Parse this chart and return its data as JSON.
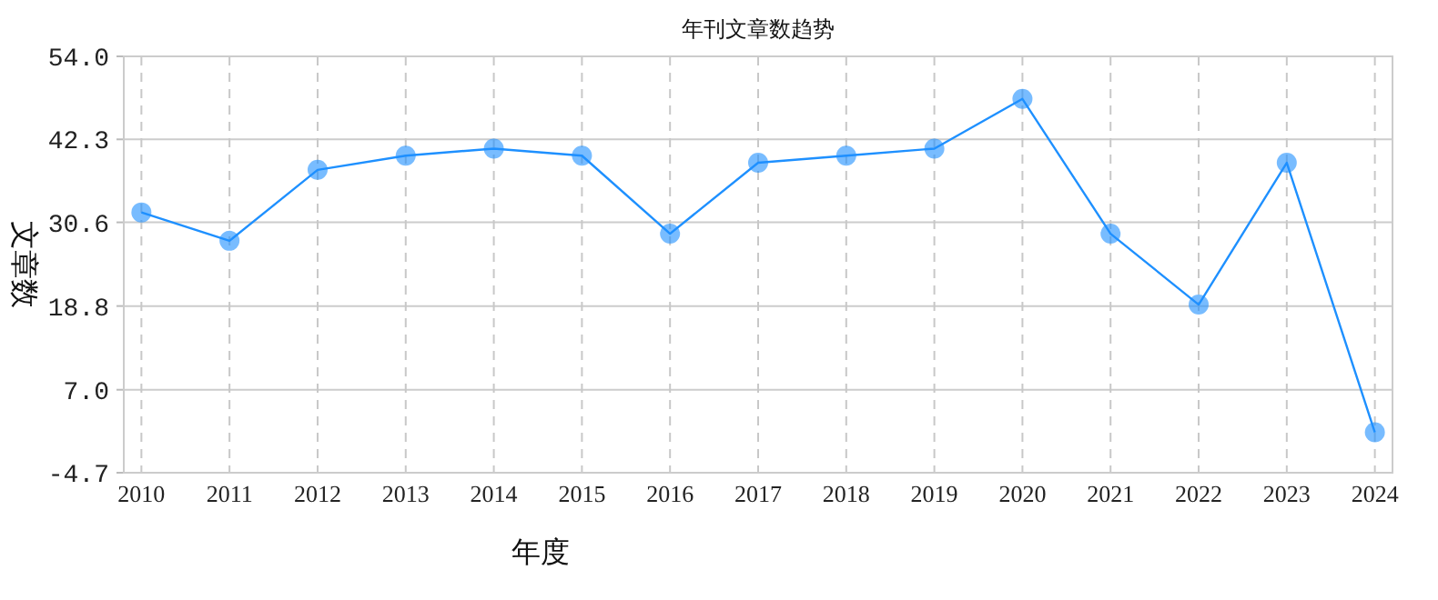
{
  "chart_data": {
    "type": "line",
    "title": "年刊文章数趋势",
    "xlabel": "年度",
    "ylabel": "文章数",
    "categories": [
      "2010",
      "2011",
      "2012",
      "2013",
      "2014",
      "2015",
      "2016",
      "2017",
      "2018",
      "2019",
      "2020",
      "2021",
      "2022",
      "2023",
      "2024"
    ],
    "series": [
      {
        "color": "#1e90ff",
        "values": [
          32,
          28,
          38,
          40,
          41,
          40,
          29,
          39,
          40,
          41,
          48,
          29,
          19,
          39,
          1
        ]
      }
    ],
    "ylim": [
      -4.7,
      54
    ],
    "yticks": [
      {
        "value": -4.7,
        "label": "-4.7"
      },
      {
        "value": 7,
        "label": "7.0"
      },
      {
        "value": 18.8,
        "label": "18.8"
      },
      {
        "value": 30.6,
        "label": "30.6"
      },
      {
        "value": 42.3,
        "label": "42.3"
      },
      {
        "value": 54,
        "label": "54.0"
      }
    ],
    "grid": true,
    "marker": "circle",
    "line_style": "solid"
  }
}
